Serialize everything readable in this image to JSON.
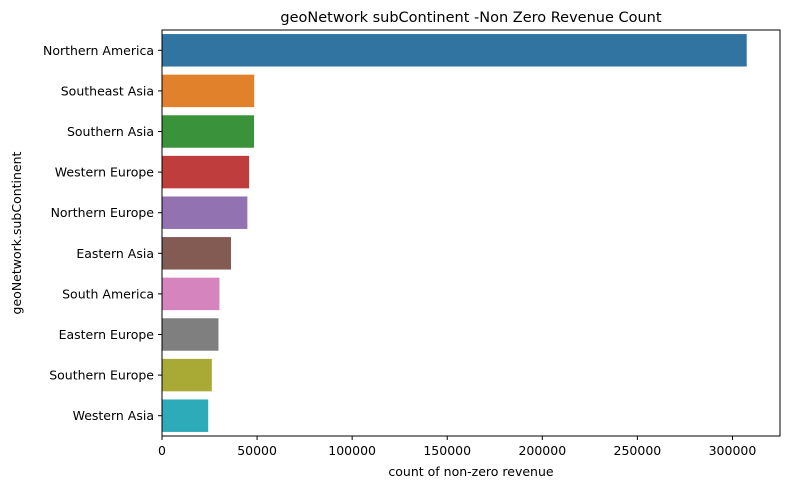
{
  "chart_data": {
    "type": "bar",
    "orientation": "horizontal",
    "title": "geoNetwork subContinent -Non Zero Revenue Count",
    "xlabel": "count of non-zero revenue",
    "ylabel": "geoNetwork.subContinent",
    "xlim": [
      0,
      325000
    ],
    "xticks": [
      0,
      50000,
      100000,
      150000,
      200000,
      250000,
      300000
    ],
    "xtick_labels": [
      "0",
      "50000",
      "100000",
      "150000",
      "200000",
      "250000",
      "300000"
    ],
    "grid": false,
    "categories": [
      "Northern America",
      "Southeast Asia",
      "Southern Asia",
      "Western Europe",
      "Northern Europe",
      "Eastern Asia",
      "South America",
      "Eastern Europe",
      "Southern Europe",
      "Western Asia"
    ],
    "values": [
      307500,
      48500,
      48400,
      45800,
      44900,
      36300,
      30200,
      29700,
      26200,
      24300
    ],
    "colors": [
      "#3274a1",
      "#e1812c",
      "#3a923a",
      "#c03d3e",
      "#9372b2",
      "#845b53",
      "#d684bd",
      "#7f7f7f",
      "#a9aa35",
      "#2eabb8"
    ]
  }
}
